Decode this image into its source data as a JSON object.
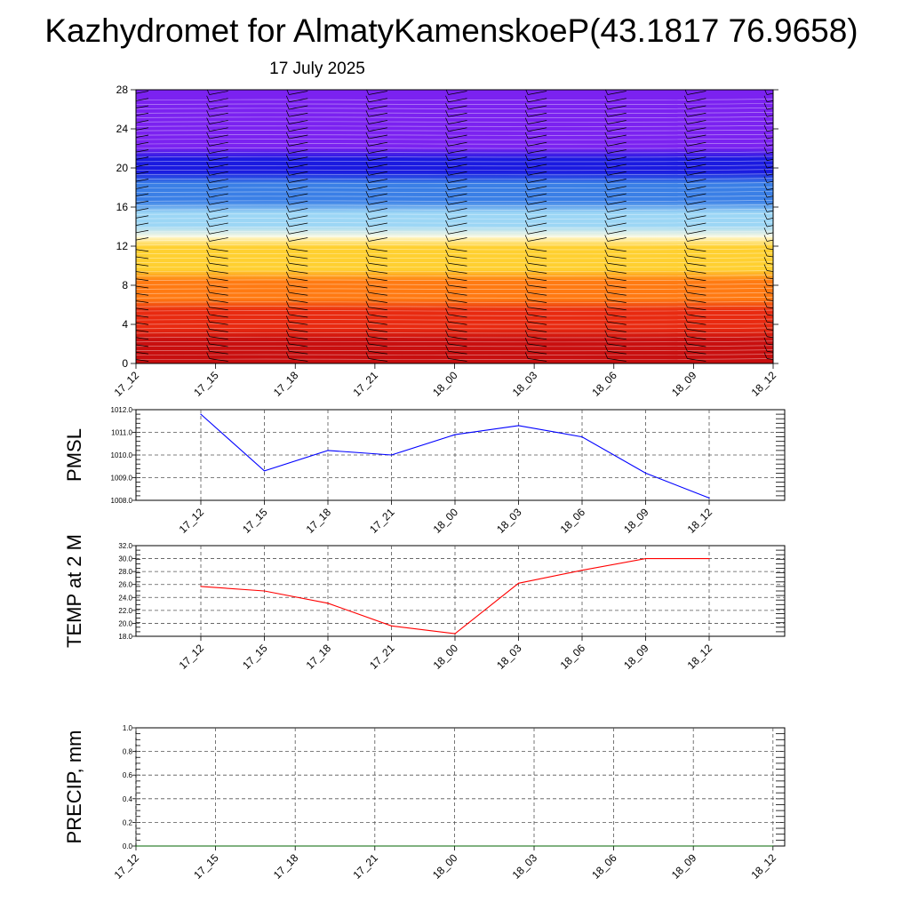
{
  "header": {
    "title": "Kazhydromet for AlmatyKamenskoeP(43.1817 76.9658)",
    "subtitle": "17 July 2025"
  },
  "chart_data": [
    {
      "type": "heatmap",
      "name": "cross-section",
      "x_categories": [
        "17_12",
        "17_15",
        "17_18",
        "17_21",
        "18_00",
        "18_03",
        "18_06",
        "18_09",
        "18_12"
      ],
      "ylim": [
        0,
        28
      ],
      "yticks": [
        0,
        4,
        8,
        12,
        16,
        20,
        24,
        28
      ],
      "color_bands": [
        {
          "from": 0,
          "to": 3,
          "color": "#c80f0f"
        },
        {
          "from": 3,
          "to": 6,
          "color": "#e82a10"
        },
        {
          "from": 6,
          "to": 9,
          "color": "#ff7a12"
        },
        {
          "from": 9,
          "to": 12.5,
          "color": "#ffd030"
        },
        {
          "from": 12.5,
          "to": 13.5,
          "color": "#fffbe0"
        },
        {
          "from": 13.5,
          "to": 16,
          "color": "#9cd6f5"
        },
        {
          "from": 16,
          "to": 19,
          "color": "#3a7fe6"
        },
        {
          "from": 19,
          "to": 21.5,
          "color": "#1a1ae0"
        },
        {
          "from": 21.5,
          "to": 28,
          "color": "#7b22f0"
        }
      ],
      "grid": false
    },
    {
      "type": "line",
      "ylabel": "PMSL",
      "categories": [
        "17_12",
        "17_15",
        "17_18",
        "17_21",
        "18_00",
        "18_03",
        "18_06",
        "18_09",
        "18_12"
      ],
      "values": [
        1011.8,
        1009.3,
        1010.2,
        1010.0,
        1010.9,
        1011.3,
        1010.8,
        1009.2,
        1008.1
      ],
      "ylim": [
        1008.0,
        1012.0
      ],
      "yticks": [
        "1012.0",
        "1011.0",
        "1010.0",
        "1009.0",
        "1008.0"
      ],
      "line_color": "#0000ff",
      "grid": true
    },
    {
      "type": "line",
      "ylabel": "TEMP at 2 M",
      "categories": [
        "17_12",
        "17_15",
        "17_18",
        "17_21",
        "18_00",
        "18_03",
        "18_06",
        "18_09",
        "18_12"
      ],
      "values": [
        25.7,
        25.0,
        23.1,
        19.6,
        18.4,
        26.2,
        28.2,
        30.0,
        30.0
      ],
      "ylim": [
        18.0,
        32.0
      ],
      "yticks": [
        "32.0",
        "30.0",
        "28.0",
        "26.0",
        "24.0",
        "22.0",
        "20.0",
        "18.0"
      ],
      "line_color": "#ff0000",
      "grid": true
    },
    {
      "type": "line",
      "ylabel": "PRECIP, mm",
      "categories": [
        "17_12",
        "17_15",
        "17_18",
        "17_21",
        "18_00",
        "18_03",
        "18_06",
        "18_09",
        "18_12"
      ],
      "values": [
        0,
        0,
        0,
        0,
        0,
        0,
        0,
        0,
        0
      ],
      "ylim": [
        0.0,
        1.0
      ],
      "yticks": [
        "1.0",
        "0.8",
        "0.6",
        "0.4",
        "0.2",
        "0.0"
      ],
      "line_color": "#006400",
      "grid": true
    }
  ]
}
